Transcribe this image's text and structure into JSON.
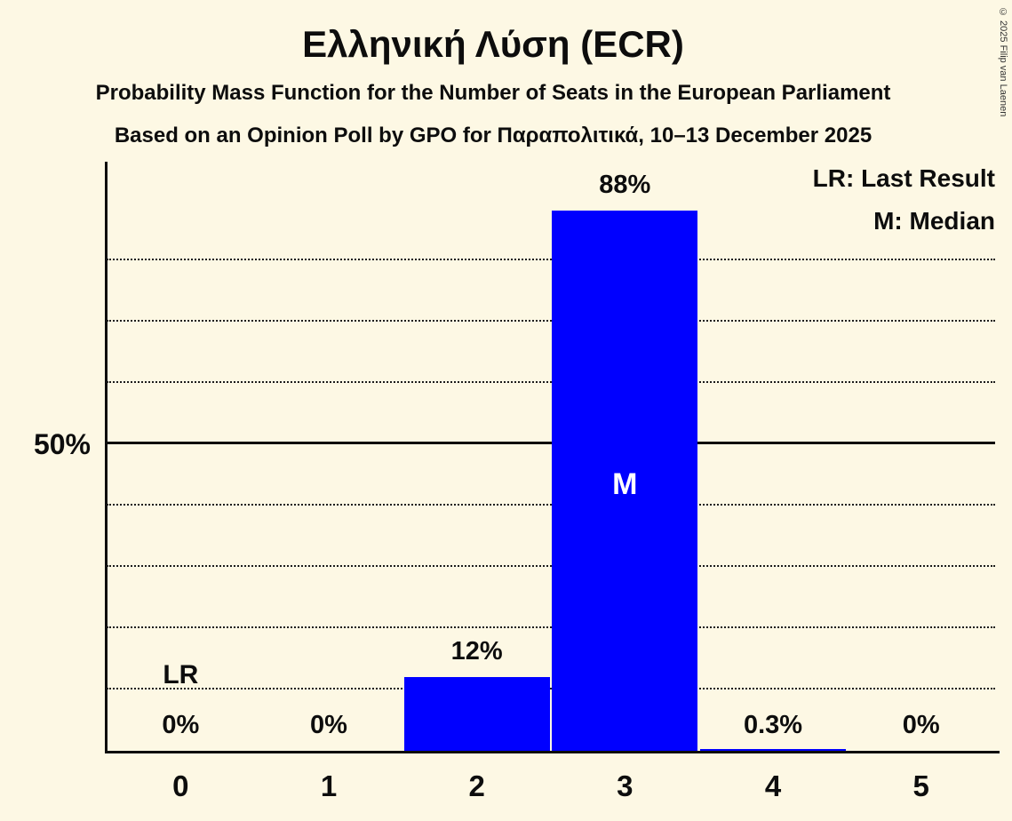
{
  "title": "Ελληνική Λύση (ECR)",
  "subtitle1": "Probability Mass Function for the Number of Seats in the European Parliament",
  "subtitle2": "Based on an Opinion Poll by GPO for Παραπολιτικά, 10–13 December 2025",
  "copyright": "© 2025 Filip van Laenen",
  "legend": {
    "lr": "LR: Last Result",
    "m": "M: Median"
  },
  "y_axis_label": "50%",
  "colors": {
    "background": "#fdf8e4",
    "bar": "#0000ff",
    "text": "#0d0d0d",
    "median_text": "#ffffff"
  },
  "chart_data": {
    "type": "bar",
    "categories": [
      "0",
      "1",
      "2",
      "3",
      "4",
      "5"
    ],
    "values": [
      0,
      0,
      12,
      88,
      0.3,
      0
    ],
    "value_labels": [
      "0%",
      "0%",
      "12%",
      "88%",
      "0.3%",
      "0%"
    ],
    "title": "Ελληνική Λύση (ECR)",
    "xlabel": "",
    "ylabel": "",
    "ylim": [
      0,
      96
    ],
    "solid_gridline": 50,
    "dotted_gridlines": [
      10,
      20,
      30,
      40,
      60,
      70,
      80
    ],
    "grid": true,
    "legend_position": "top-right",
    "median_category": "3",
    "median_marker": "M",
    "last_result_category": "0",
    "last_result_marker": "LR"
  }
}
